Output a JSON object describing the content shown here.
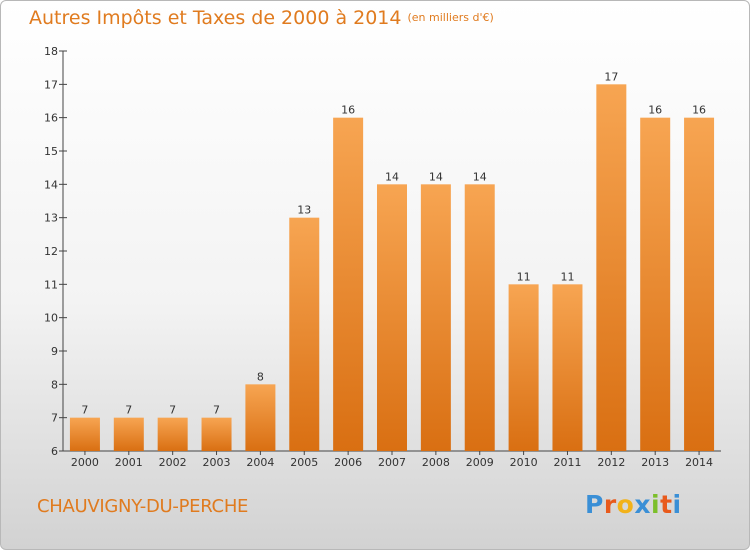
{
  "title": {
    "main": "Autres Impôts et Taxes de 2000 à 2014",
    "sub": "(en milliers d'€)"
  },
  "commune": "CHAUVIGNY-DU-PERCHE",
  "logo": {
    "text": "Proxiti",
    "colors": [
      "#3a8fd6",
      "#e85a1c",
      "#f2b21a",
      "#3a8fd6",
      "#7cbf2a",
      "#e85a1c",
      "#3a8fd6"
    ]
  },
  "colors": {
    "accent": "#e07b1f",
    "bar_top": "#f7a552",
    "bar_bottom": "#d96f12"
  },
  "chart_data": {
    "type": "bar",
    "categories": [
      "2000",
      "2001",
      "2002",
      "2003",
      "2004",
      "2005",
      "2006",
      "2007",
      "2008",
      "2009",
      "2010",
      "2011",
      "2012",
      "2013",
      "2014"
    ],
    "values": [
      7,
      7,
      7,
      7,
      8,
      13,
      16,
      14,
      14,
      14,
      11,
      11,
      17,
      16,
      16
    ],
    "ylim": [
      6,
      18
    ],
    "yticks": [
      6,
      7,
      8,
      9,
      10,
      11,
      12,
      13,
      14,
      15,
      16,
      17,
      18
    ],
    "grid": false,
    "legend": "none"
  }
}
